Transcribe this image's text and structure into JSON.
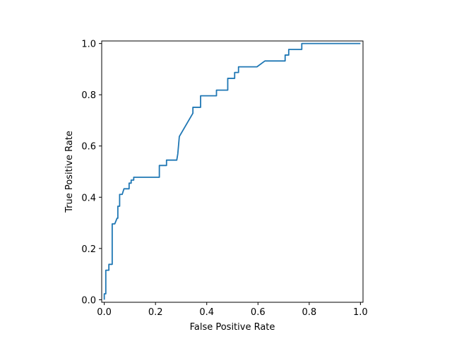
{
  "chart_data": {
    "type": "line",
    "title": "",
    "xlabel": "False Positive Rate",
    "ylabel": "True Positive Rate",
    "xlim": [
      -0.01,
      1.01
    ],
    "ylim": [
      -0.01,
      1.01
    ],
    "x_ticks": [
      "0.0",
      "0.2",
      "0.4",
      "0.6",
      "0.8",
      "1.0"
    ],
    "y_ticks": [
      "0.0",
      "0.2",
      "0.4",
      "0.6",
      "0.8",
      "1.0"
    ],
    "grid": false,
    "legend": "none",
    "series": [
      {
        "color": "#1f77b4",
        "x": [
          0.0,
          0.0,
          0.006,
          0.006,
          0.006,
          0.018,
          0.018,
          0.031,
          0.031,
          0.041,
          0.05,
          0.053,
          0.053,
          0.06,
          0.06,
          0.07,
          0.077,
          0.077,
          0.097,
          0.097,
          0.105,
          0.105,
          0.115,
          0.115,
          0.215,
          0.215,
          0.243,
          0.243,
          0.283,
          0.287,
          0.293,
          0.346,
          0.346,
          0.376,
          0.376,
          0.438,
          0.438,
          0.482,
          0.482,
          0.509,
          0.509,
          0.524,
          0.524,
          0.596,
          0.627,
          0.706,
          0.706,
          0.72,
          0.72,
          0.771,
          0.771,
          1.0
        ],
        "y": [
          0.0,
          0.023,
          0.023,
          0.07,
          0.115,
          0.115,
          0.138,
          0.138,
          0.296,
          0.296,
          0.318,
          0.318,
          0.365,
          0.365,
          0.411,
          0.411,
          0.433,
          0.433,
          0.433,
          0.455,
          0.455,
          0.467,
          0.467,
          0.478,
          0.478,
          0.524,
          0.524,
          0.545,
          0.545,
          0.569,
          0.637,
          0.728,
          0.751,
          0.751,
          0.796,
          0.796,
          0.818,
          0.818,
          0.864,
          0.864,
          0.887,
          0.887,
          0.909,
          0.909,
          0.932,
          0.932,
          0.955,
          0.955,
          0.977,
          0.977,
          1.0,
          1.0
        ]
      }
    ]
  }
}
